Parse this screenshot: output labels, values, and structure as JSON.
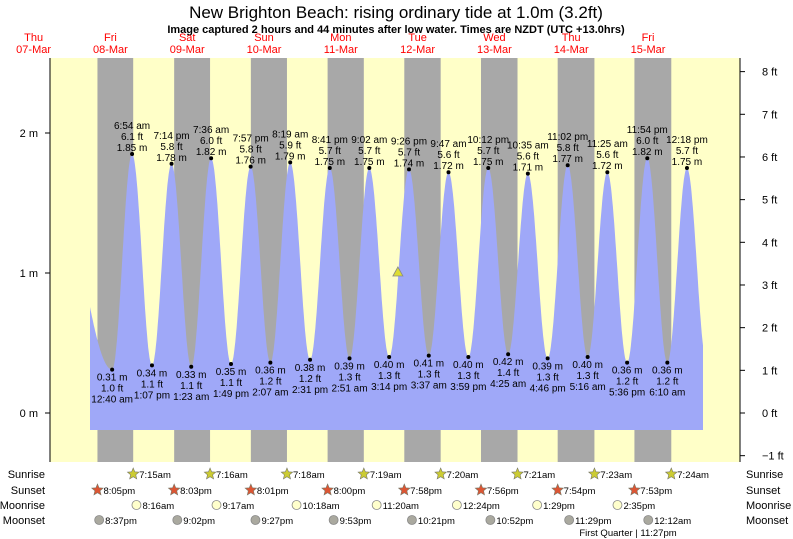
{
  "colors": {
    "day": "#ffffc8",
    "night": "#a8a8a8",
    "water": "#9fa8f8",
    "date_label": "#ff0000",
    "sunrise": "#cccc33",
    "sunset": "#dd5533",
    "moonrise": "#ffffcc",
    "moonset": "#aaa99f",
    "marker": "#dddd33"
  },
  "chart_data": {
    "type": "area",
    "title": "New Brighton Beach: rising  ordinary tide at 1.0m (3.2ft)",
    "subtitle": "Image captured 2 hours and 44 minutes after low water. Times are NZDT (UTC +13.0hrs)",
    "days": [
      {
        "name": "Thu",
        "date": "07-Mar"
      },
      {
        "name": "Fri",
        "date": "08-Mar"
      },
      {
        "name": "Sat",
        "date": "09-Mar"
      },
      {
        "name": "Sun",
        "date": "10-Mar"
      },
      {
        "name": "Mon",
        "date": "11-Mar"
      },
      {
        "name": "Tue",
        "date": "12-Mar"
      },
      {
        "name": "Wed",
        "date": "13-Mar"
      },
      {
        "name": "Thu",
        "date": "14-Mar"
      },
      {
        "name": "Fri",
        "date": "15-Mar"
      }
    ],
    "y_left": {
      "unit": "m",
      "ticks": [
        "0 m",
        "1 m",
        "2 m"
      ],
      "tick_values": [
        0,
        1,
        2
      ]
    },
    "y_right": {
      "unit": "ft",
      "ticks": [
        "8 ft",
        "7 ft",
        "6 ft",
        "5 ft",
        "4 ft",
        "3 ft",
        "2 ft",
        "1 ft",
        "0 ft",
        "−1 ft"
      ],
      "tick_values": [
        8,
        7,
        6,
        5,
        4,
        3,
        2,
        1,
        0,
        -1
      ]
    },
    "extremes": [
      {
        "type": "low",
        "date": "08-Mar",
        "time": "12:40 am",
        "m": 0.31,
        "m_label": "0.31 m",
        "ft_label": "1.0 ft"
      },
      {
        "type": "high",
        "date": "08-Mar",
        "time": "6:54 am",
        "m": 1.85,
        "m_label": "1.85 m",
        "ft_label": "6.1 ft"
      },
      {
        "type": "low",
        "date": "08-Mar",
        "time": "1:07 pm",
        "m": 0.34,
        "m_label": "0.34 m",
        "ft_label": "1.1 ft"
      },
      {
        "type": "high",
        "date": "08-Mar",
        "time": "7:14 pm",
        "m": 1.78,
        "m_label": "1.78 m",
        "ft_label": "5.8 ft"
      },
      {
        "type": "low",
        "date": "09-Mar",
        "time": "1:23 am",
        "m": 0.33,
        "m_label": "0.33 m",
        "ft_label": "1.1 ft"
      },
      {
        "type": "high",
        "date": "09-Mar",
        "time": "7:36 am",
        "m": 1.82,
        "m_label": "1.82 m",
        "ft_label": "6.0 ft"
      },
      {
        "type": "low",
        "date": "09-Mar",
        "time": "1:49 pm",
        "m": 0.35,
        "m_label": "0.35 m",
        "ft_label": "1.1 ft"
      },
      {
        "type": "high",
        "date": "09-Mar",
        "time": "7:57 pm",
        "m": 1.76,
        "m_label": "1.76 m",
        "ft_label": "5.8 ft"
      },
      {
        "type": "low",
        "date": "10-Mar",
        "time": "2:07 am",
        "m": 0.36,
        "m_label": "0.36 m",
        "ft_label": "1.2 ft"
      },
      {
        "type": "high",
        "date": "10-Mar",
        "time": "8:19 am",
        "m": 1.79,
        "m_label": "1.79 m",
        "ft_label": "5.9 ft"
      },
      {
        "type": "low",
        "date": "10-Mar",
        "time": "2:31 pm",
        "m": 0.38,
        "m_label": "0.38 m",
        "ft_label": "1.2 ft"
      },
      {
        "type": "high",
        "date": "10-Mar",
        "time": "8:41 pm",
        "m": 1.75,
        "m_label": "1.75 m",
        "ft_label": "5.7 ft"
      },
      {
        "type": "low",
        "date": "11-Mar",
        "time": "2:51 am",
        "m": 0.39,
        "m_label": "0.39 m",
        "ft_label": "1.3 ft"
      },
      {
        "type": "high",
        "date": "11-Mar",
        "time": "9:02 am",
        "m": 1.75,
        "m_label": "1.75 m",
        "ft_label": "5.7 ft"
      },
      {
        "type": "low",
        "date": "11-Mar",
        "time": "3:14 pm",
        "m": 0.4,
        "m_label": "0.40 m",
        "ft_label": "1.3 ft"
      },
      {
        "type": "high",
        "date": "11-Mar",
        "time": "9:26 pm",
        "m": 1.74,
        "m_label": "1.74 m",
        "ft_label": "5.7 ft"
      },
      {
        "type": "low",
        "date": "12-Mar",
        "time": "3:37 am",
        "m": 0.41,
        "m_label": "0.41 m",
        "ft_label": "1.3 ft"
      },
      {
        "type": "high",
        "date": "12-Mar",
        "time": "9:47 am",
        "m": 1.72,
        "m_label": "1.72 m",
        "ft_label": "5.6 ft"
      },
      {
        "type": "low",
        "date": "12-Mar",
        "time": "3:59 pm",
        "m": 0.4,
        "m_label": "0.40 m",
        "ft_label": "1.3 ft"
      },
      {
        "type": "high",
        "date": "12-Mar",
        "time": "10:12 pm",
        "m": 1.75,
        "m_label": "1.75 m",
        "ft_label": "5.7 ft"
      },
      {
        "type": "low",
        "date": "13-Mar",
        "time": "4:25 am",
        "m": 0.42,
        "m_label": "0.42 m",
        "ft_label": "1.4 ft"
      },
      {
        "type": "high",
        "date": "13-Mar",
        "time": "10:35 am",
        "m": 1.71,
        "m_label": "1.71 m",
        "ft_label": "5.6 ft"
      },
      {
        "type": "low",
        "date": "13-Mar",
        "time": "4:46 pm",
        "m": 0.39,
        "m_label": "0.39 m",
        "ft_label": "1.3 ft"
      },
      {
        "type": "high",
        "date": "13-Mar",
        "time": "11:02 pm",
        "m": 1.77,
        "m_label": "1.77 m",
        "ft_label": "5.8 ft"
      },
      {
        "type": "low",
        "date": "14-Mar",
        "time": "5:16 am",
        "m": 0.4,
        "m_label": "0.40 m",
        "ft_label": "1.3 ft"
      },
      {
        "type": "high",
        "date": "14-Mar",
        "time": "11:25 am",
        "m": 1.72,
        "m_label": "1.72 m",
        "ft_label": "5.6 ft"
      },
      {
        "type": "low",
        "date": "14-Mar",
        "time": "5:36 pm",
        "m": 0.36,
        "m_label": "0.36 m",
        "ft_label": "1.2 ft"
      },
      {
        "type": "high",
        "date": "14-Mar",
        "time": "11:54 pm",
        "m": 1.82,
        "m_label": "1.82 m",
        "ft_label": "6.0 ft"
      },
      {
        "type": "low",
        "date": "15-Mar",
        "time": "6:10 am",
        "m": 0.36,
        "m_label": "0.36 m",
        "ft_label": "1.2 ft"
      },
      {
        "type": "high",
        "date": "15-Mar",
        "time": "12:18 pm",
        "m": 1.75,
        "m_label": "1.75 m",
        "ft_label": "5.7 ft"
      }
    ],
    "current_marker": {
      "date": "11-Mar",
      "time": "5:58 pm",
      "m": 1.0
    },
    "rows": {
      "sunrise": {
        "label": "Sunrise",
        "events": [
          {
            "date": "08-Mar",
            "time": "7:15am"
          },
          {
            "date": "09-Mar",
            "time": "7:16am"
          },
          {
            "date": "10-Mar",
            "time": "7:18am"
          },
          {
            "date": "11-Mar",
            "time": "7:19am"
          },
          {
            "date": "12-Mar",
            "time": "7:20am"
          },
          {
            "date": "13-Mar",
            "time": "7:21am"
          },
          {
            "date": "14-Mar",
            "time": "7:23am"
          },
          {
            "date": "15-Mar",
            "time": "7:24am"
          }
        ]
      },
      "sunset": {
        "label": "Sunset",
        "events": [
          {
            "date": "07-Mar",
            "time": "8:05pm"
          },
          {
            "date": "08-Mar",
            "time": "8:03pm"
          },
          {
            "date": "09-Mar",
            "time": "8:01pm"
          },
          {
            "date": "10-Mar",
            "time": "8:00pm"
          },
          {
            "date": "11-Mar",
            "time": "7:58pm"
          },
          {
            "date": "12-Mar",
            "time": "7:56pm"
          },
          {
            "date": "13-Mar",
            "time": "7:54pm"
          },
          {
            "date": "14-Mar",
            "time": "7:53pm"
          }
        ]
      },
      "moonrise": {
        "label": "Moonrise",
        "events": [
          {
            "date": "08-Mar",
            "time": "8:16am"
          },
          {
            "date": "09-Mar",
            "time": "9:17am"
          },
          {
            "date": "10-Mar",
            "time": "10:18am"
          },
          {
            "date": "11-Mar",
            "time": "11:20am"
          },
          {
            "date": "12-Mar",
            "time": "12:24pm"
          },
          {
            "date": "13-Mar",
            "time": "1:29pm"
          },
          {
            "date": "14-Mar",
            "time": "2:35pm"
          }
        ]
      },
      "moonset": {
        "label": "Moonset",
        "events": [
          {
            "date": "07-Mar",
            "time": "8:37pm"
          },
          {
            "date": "08-Mar",
            "time": "9:02pm"
          },
          {
            "date": "09-Mar",
            "time": "9:27pm"
          },
          {
            "date": "10-Mar",
            "time": "9:53pm"
          },
          {
            "date": "11-Mar",
            "time": "10:21pm"
          },
          {
            "date": "12-Mar",
            "time": "10:52pm"
          },
          {
            "date": "13-Mar",
            "time": "11:29pm"
          },
          {
            "date": "15-Mar",
            "time": "12:12am"
          }
        ]
      }
    },
    "moon_phase_note": "First Quarter | 11:27pm"
  }
}
